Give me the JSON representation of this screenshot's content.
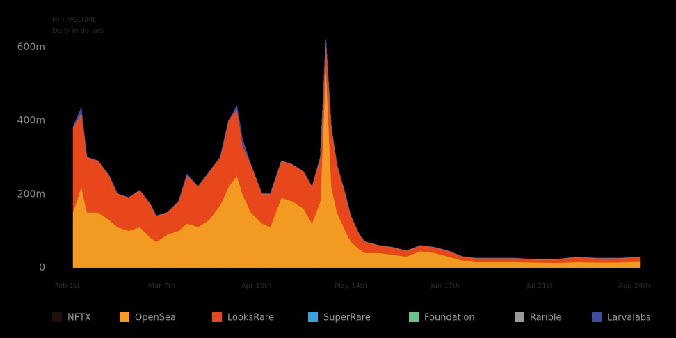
{
  "chart_data": {
    "type": "stacked-area",
    "title": "NFT VOLUME",
    "subtitle": "Daily in dollars",
    "x": [
      0,
      3,
      5,
      9,
      13,
      16,
      20,
      24,
      28,
      30,
      34,
      38,
      41,
      45,
      49,
      53,
      56,
      59,
      61,
      64,
      68,
      71,
      75,
      79,
      83,
      86,
      89,
      91,
      93,
      95,
      98,
      100,
      103,
      105,
      110,
      115,
      120,
      125,
      130,
      135,
      140,
      145,
      151,
      159,
      166,
      174,
      181,
      189,
      196,
      204
    ],
    "xlim": [
      -2,
      204
    ],
    "xticks": [
      {
        "value": -2,
        "label": "Feb 1st"
      },
      {
        "value": 32,
        "label": "Mar 7th"
      },
      {
        "value": 66,
        "label": "Apr 10th"
      },
      {
        "value": 100,
        "label": "May 14th"
      },
      {
        "value": 134,
        "label": "Jun 17th"
      },
      {
        "value": 168,
        "label": "Jul 21st"
      },
      {
        "value": 202,
        "label": "Aug 24th"
      }
    ],
    "ylim": [
      0,
      600
    ],
    "yticks": [
      0,
      {
        "value": 200,
        "label": "200m"
      },
      {
        "value": 400,
        "label": "400m"
      },
      {
        "value": 600,
        "label": "600m"
      }
    ],
    "series": [
      {
        "name": "NFTX",
        "color": "#1c110b",
        "values": [
          0.5,
          0.5,
          0.5,
          0.5,
          0.5,
          0.5,
          0.5,
          0.5,
          0.5,
          0.5,
          0.5,
          0.5,
          0.5,
          0.5,
          0.5,
          0.5,
          0.5,
          0.5,
          0.5,
          0.5,
          0.5,
          0.5,
          0.5,
          0.5,
          0.5,
          0.5,
          0.5,
          0.5,
          0.5,
          0.5,
          0.5,
          0.5,
          0.5,
          0.5,
          0.5,
          0.5,
          0.5,
          0.5,
          0.5,
          0.5,
          0.5,
          0.5,
          0.5,
          0.5,
          0.5,
          0.5,
          0.5,
          0.5,
          0.5,
          0.5
        ]
      },
      {
        "name": "OpenSea",
        "color": "#f29a22",
        "values": [
          150,
          220,
          150,
          150,
          130,
          110,
          100,
          110,
          80,
          70,
          90,
          100,
          120,
          110,
          130,
          170,
          220,
          250,
          200,
          150,
          120,
          110,
          190,
          180,
          160,
          120,
          180,
          550,
          220,
          150,
          100,
          70,
          50,
          40,
          40,
          35,
          30,
          45,
          40,
          30,
          20,
          15,
          15,
          15,
          14,
          13,
          15,
          14,
          14,
          16
        ]
      },
      {
        "name": "LooksRare",
        "color": "#e8471c",
        "values": [
          230,
          200,
          150,
          140,
          120,
          90,
          90,
          100,
          90,
          70,
          60,
          80,
          130,
          110,
          130,
          130,
          180,
          180,
          130,
          130,
          80,
          90,
          100,
          100,
          100,
          100,
          120,
          70,
          160,
          130,
          100,
          70,
          40,
          30,
          20,
          20,
          15,
          15,
          15,
          15,
          10,
          10,
          10,
          10,
          8,
          9,
          13,
          11,
          11,
          12
        ]
      },
      {
        "name": "SuperRare",
        "color": "#3aa0de",
        "values": [
          0.3,
          0.3,
          0.3,
          0.3,
          0.3,
          0.3,
          0.3,
          0.3,
          0.3,
          0.3,
          0.3,
          0.3,
          0.3,
          0.3,
          0.3,
          0.3,
          0.3,
          0.3,
          0.3,
          0.3,
          0.3,
          0.3,
          0.3,
          0.3,
          0.3,
          0.3,
          0.3,
          0.3,
          0.3,
          0.3,
          0.3,
          0.3,
          0.3,
          0.3,
          0.3,
          0.3,
          0.3,
          0.3,
          0.3,
          0.3,
          0.3,
          0.3,
          0.3,
          0.3,
          0.3,
          0.3,
          0.3,
          0.3,
          0.3,
          0.3
        ]
      },
      {
        "name": "Foundation",
        "color": "#6ec08a",
        "values": [
          0.3,
          0.3,
          0.3,
          0.3,
          0.3,
          0.3,
          0.3,
          0.3,
          0.3,
          0.3,
          0.3,
          0.3,
          0.3,
          0.3,
          0.3,
          0.3,
          0.3,
          0.3,
          0.3,
          0.3,
          0.3,
          0.3,
          0.3,
          0.3,
          0.3,
          0.3,
          0.3,
          0.3,
          0.3,
          0.3,
          0.3,
          0.3,
          0.3,
          0.3,
          0.3,
          0.3,
          0.3,
          0.3,
          0.3,
          0.3,
          0.3,
          0.3,
          0.3,
          0.3,
          0.3,
          0.3,
          0.3,
          0.3,
          0.3,
          0.3
        ]
      },
      {
        "name": "Rarible",
        "color": "#9a9a9a",
        "values": [
          0.2,
          0.2,
          0.2,
          0.2,
          0.2,
          0.2,
          0.2,
          0.2,
          0.2,
          0.2,
          0.2,
          0.2,
          0.2,
          0.2,
          0.2,
          0.2,
          0.2,
          0.2,
          0.2,
          0.2,
          0.2,
          0.2,
          0.2,
          0.2,
          0.2,
          0.2,
          0.2,
          0.2,
          0.2,
          0.2,
          0.2,
          0.2,
          0.2,
          0.2,
          0.2,
          0.2,
          0.2,
          0.2,
          0.2,
          0.2,
          0.2,
          0.2,
          0.2,
          0.2,
          0.2,
          0.2,
          0.2,
          0.2,
          0.2,
          0.2
        ]
      },
      {
        "name": "Larvalabs",
        "color": "#3c4ca0",
        "values": [
          3,
          15,
          0,
          0,
          0,
          0,
          0,
          0,
          0,
          0,
          0,
          0,
          5,
          0,
          0,
          0,
          0,
          10,
          20,
          0,
          0,
          0,
          0,
          0,
          0,
          0,
          0,
          0,
          0,
          0,
          0,
          0,
          0,
          0,
          0,
          0,
          0,
          0,
          0,
          0,
          0,
          0,
          0,
          0,
          0,
          0,
          0,
          0,
          0,
          0
        ]
      }
    ]
  }
}
